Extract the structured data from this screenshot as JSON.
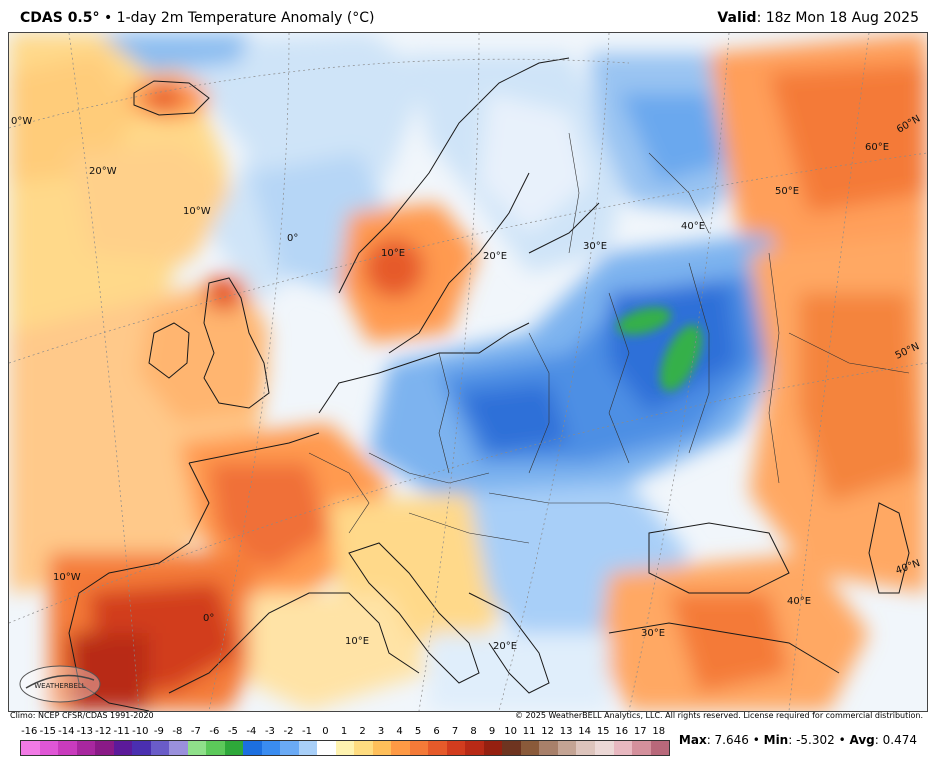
{
  "header": {
    "model": "CDAS 0.5°",
    "separator": "•",
    "product": "1-day 2m Temperature Anomaly (°C)",
    "valid_label": "Valid",
    "valid_time": ": 18z Mon 18 Aug 2025"
  },
  "footer": {
    "climo": "Climo: NCEP CFSR/CDAS 1991-2020",
    "copyright": "© 2025 WeatherBELL Analytics, LLC. All rights reserved. License required for commercial distribution."
  },
  "logo": {
    "text": "WEATHERBELL"
  },
  "stats": {
    "max_label": "Max",
    "max_value": ": 7.646",
    "min_label": "Min",
    "min_value": ": -5.302",
    "avg_label": "Avg",
    "avg_value": ": 0.474",
    "sep": " • "
  },
  "colorbar": {
    "labels": [
      "-16",
      "-15",
      "-14",
      "-13",
      "-12",
      "-11",
      "-10",
      "-9",
      "-8",
      "-7",
      "-6",
      "-5",
      "-4",
      "-3",
      "-2",
      "-1",
      "0",
      "1",
      "2",
      "3",
      "4",
      "5",
      "6",
      "7",
      "8",
      "9",
      "10",
      "11",
      "12",
      "13",
      "14",
      "15",
      "16",
      "17",
      "18"
    ],
    "colors": [
      "#f27ae6",
      "#e056d6",
      "#c93bbd",
      "#a8279f",
      "#8a1a87",
      "#5c1a9a",
      "#4a2fb0",
      "#6a5cc8",
      "#9a90dc",
      "#8fe08a",
      "#5cc95a",
      "#2ea83a",
      "#1c6fe0",
      "#3a8cf0",
      "#6aaaf5",
      "#a8cff8",
      "#ffffff",
      "#fff3b0",
      "#ffdc80",
      "#ffbf5a",
      "#ff9a45",
      "#f47a38",
      "#e65a2a",
      "#d23c1e",
      "#b82a16",
      "#952010",
      "#6e3420",
      "#8a5a3a",
      "#a8806a",
      "#c4a494",
      "#ddc4bc",
      "#ecd8d6",
      "#e8b8c0",
      "#d4909c",
      "#b8687a"
    ]
  },
  "grid_labels": {
    "lon_0w_top": "0°W",
    "lon_20w": "20°W",
    "lon_10w_mid": "10°W",
    "lon_0": "0°",
    "lon_10e_north": "10°E",
    "lon_20e_north": "20°E",
    "lon_30e_north": "30°E",
    "lon_40e_north": "40°E",
    "lon_50e_north": "50°E",
    "lat_60n_label": "60°E",
    "lat_60n_edge": "60°N",
    "lat_50n_edge": "50°N",
    "lat_40n_edge": "40°N",
    "lon_10w_south": "10°W",
    "lon_0_south": "0°",
    "lon_10e_south": "10°E",
    "lon_20e_south": "20°E",
    "lon_30e_south": "30°E",
    "lon_40e_south": "40°E"
  },
  "colors": {
    "warm_light": "#ffd98a",
    "warm_mid": "#ff9a50",
    "warm_strong": "#e65a2a",
    "warm_hot": "#b82a16",
    "cool_light": "#cfe4f8",
    "cool_mid": "#7db3ef",
    "cool_strong": "#3a78dc",
    "green": "#35b04a",
    "neutral": "#f4f8fc"
  }
}
